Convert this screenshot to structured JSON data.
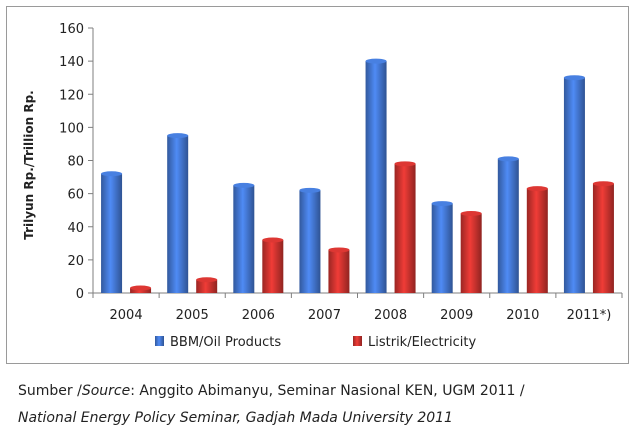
{
  "chart_data": {
    "type": "bar",
    "categories": [
      "2004",
      "2005",
      "2006",
      "2007",
      "2008",
      "2009",
      "2010",
      "2011*)"
    ],
    "series": [
      {
        "name": "BBM/Oil Products",
        "values": [
          72,
          95,
          65,
          62,
          140,
          54,
          81,
          130
        ],
        "color": "#3f6fc4"
      },
      {
        "name": "Listrik/Electricity",
        "values": [
          3,
          8,
          32,
          26,
          78,
          48,
          63,
          66
        ],
        "color": "#c0302c"
      }
    ],
    "title": "",
    "xlabel": "",
    "ylabel": "Trilyun Rp./Trillion Rp.",
    "ylim": [
      0,
      160
    ],
    "yticks": [
      0,
      20,
      40,
      60,
      80,
      100,
      120,
      140,
      160
    ],
    "grid": false,
    "legend": "bottom"
  },
  "caption": {
    "line1_prefix": "Sumber /",
    "line1_italic": "Source",
    "line1_rest": ": Anggito Abimanyu, Seminar Nasional KEN, UGM 2011 /",
    "line2": "National Energy Policy Seminar, Gadjah Mada University 2011"
  }
}
